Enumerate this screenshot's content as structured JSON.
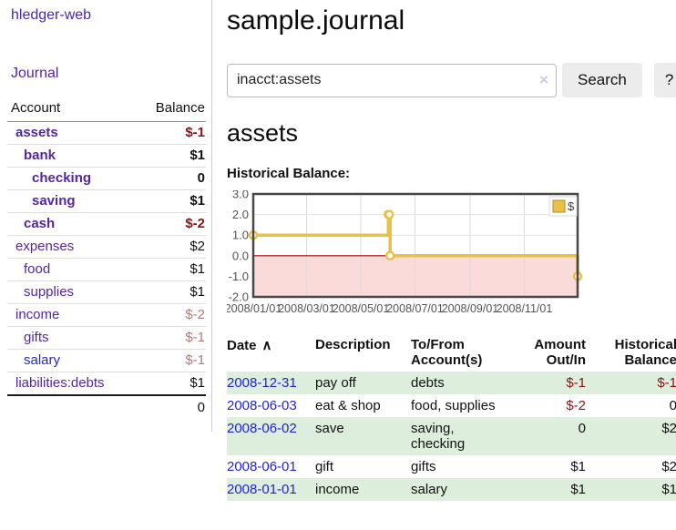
{
  "app": {
    "brand": "hledger-web",
    "nav": {
      "journal": "Journal"
    }
  },
  "sidebar": {
    "header": {
      "account": "Account",
      "balance": "Balance"
    },
    "accounts": [
      {
        "name": "assets",
        "depth": 1,
        "balance": "$-1",
        "matched": true,
        "negative": true,
        "unvisited": false
      },
      {
        "name": "bank",
        "depth": 2,
        "balance": "$1",
        "matched": true,
        "negative": false,
        "unvisited": false
      },
      {
        "name": "checking",
        "depth": 3,
        "balance": "0",
        "matched": true,
        "negative": false,
        "unvisited": false
      },
      {
        "name": "saving",
        "depth": 3,
        "balance": "$1",
        "matched": true,
        "negative": false,
        "unvisited": false
      },
      {
        "name": "cash",
        "depth": 2,
        "balance": "$-2",
        "matched": true,
        "negative": true,
        "unvisited": false
      },
      {
        "name": "expenses",
        "depth": 1,
        "balance": "$2",
        "matched": false,
        "negative": false,
        "unvisited": false
      },
      {
        "name": "food",
        "depth": 2,
        "balance": "$1",
        "matched": false,
        "negative": false,
        "unvisited": false
      },
      {
        "name": "supplies",
        "depth": 2,
        "balance": "$1",
        "matched": false,
        "negative": false,
        "unvisited": false
      },
      {
        "name": "income",
        "depth": 1,
        "balance": "$-2",
        "matched": false,
        "negative": true,
        "unvisited": false
      },
      {
        "name": "gifts",
        "depth": 2,
        "balance": "$-1",
        "matched": false,
        "negative": true,
        "unvisited": false
      },
      {
        "name": "salary",
        "depth": 2,
        "balance": "$-1",
        "matched": false,
        "negative": true,
        "unvisited": true
      },
      {
        "name": "liabilities:debts",
        "depth": 1,
        "balance": "$1",
        "matched": false,
        "negative": false,
        "unvisited": false
      }
    ],
    "total": "0"
  },
  "main": {
    "title": "sample.journal",
    "search": {
      "value": "inacct:assets",
      "clear_icon": "×",
      "button": "Search",
      "help_button": "?"
    },
    "account_heading": "assets",
    "chart_label": "Historical Balance:"
  },
  "chart_data": {
    "type": "line",
    "step": true,
    "title": "Historical Balance",
    "series": [
      {
        "name": "$",
        "color": "#e8c247",
        "points": [
          [
            "2008-01-01",
            1
          ],
          [
            "2008-06-01",
            2
          ],
          [
            "2008-06-02",
            2
          ],
          [
            "2008-06-03",
            0
          ],
          [
            "2008-12-31",
            -1
          ]
        ]
      }
    ],
    "x_range": [
      "2008-01-01",
      "2008-12-31"
    ],
    "x_ticks": [
      "2008/01/01",
      "2008/03/01",
      "2008/05/01",
      "2008/07/01",
      "2008/09/01",
      "2008/11/01"
    ],
    "y_ticks": [
      3.0,
      2.0,
      1.0,
      0.0,
      -1.0,
      -2.0
    ],
    "ylim": [
      -2,
      3
    ],
    "grid": true,
    "negative_region_color": "#fbdada",
    "zero_line_color": "#a20000",
    "legend": {
      "label": "$",
      "position": "top-right"
    }
  },
  "register": {
    "columns": [
      "Date",
      "Description",
      "To/From Account(s)",
      "Amount Out/In",
      "Historical Balance"
    ],
    "sort_icon": "∧",
    "rows": [
      {
        "date": "2008-12-31",
        "description": "pay off",
        "accounts": "debts",
        "amount": "$-1",
        "balance": "$-1",
        "amount_negative": true,
        "balance_negative": true,
        "shaded": true
      },
      {
        "date": "2008-06-03",
        "description": "eat & shop",
        "accounts": "food, supplies",
        "amount": "$-2",
        "balance": "0",
        "amount_negative": true,
        "balance_negative": false,
        "shaded": false
      },
      {
        "date": "2008-06-02",
        "description": "save",
        "accounts": "saving, checking",
        "amount": "0",
        "balance": "$2",
        "amount_negative": false,
        "balance_negative": false,
        "shaded": true
      },
      {
        "date": "2008-06-01",
        "description": "gift",
        "accounts": "gifts",
        "amount": "$1",
        "balance": "$2",
        "amount_negative": false,
        "balance_negative": false,
        "shaded": false
      },
      {
        "date": "2008-01-01",
        "description": "income",
        "accounts": "salary",
        "amount": "$1",
        "balance": "$1",
        "amount_negative": false,
        "balance_negative": false,
        "shaded": true
      }
    ]
  },
  "colors": {
    "link_purple": "#54279c",
    "link_blue": "#2525cc",
    "negative_strong": "#8e1212",
    "negative_soft": "#b87676",
    "row_shade_green": "#ddeedd",
    "chart_gold": "#e8c247",
    "chart_negative_pink": "#fbdada",
    "chart_zero_line": "#a20000"
  }
}
